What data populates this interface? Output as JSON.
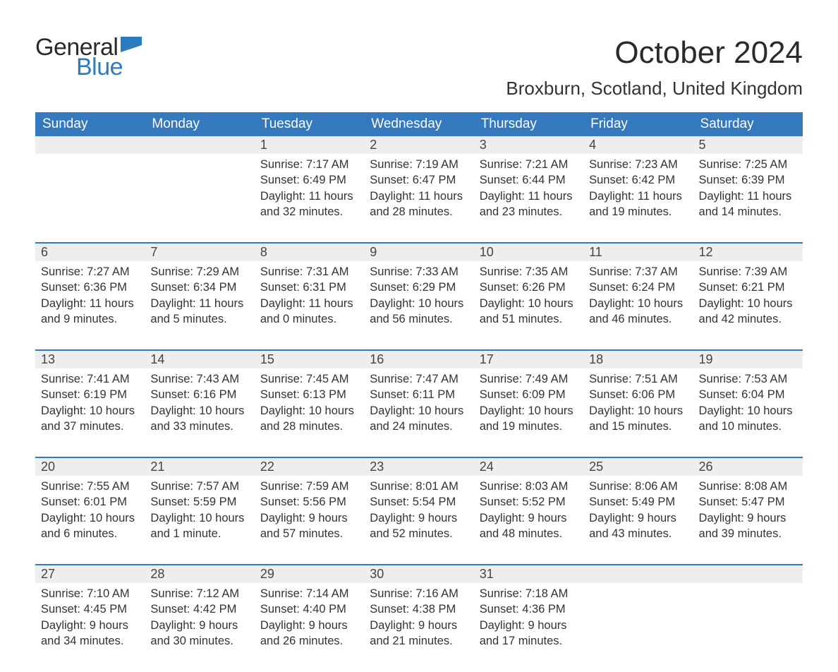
{
  "brand": {
    "word1": "General",
    "word2": "Blue",
    "flag_color": "#2b7bbf"
  },
  "header": {
    "title": "October 2024",
    "location": "Broxburn, Scotland, United Kingdom"
  },
  "colors": {
    "header_bg": "#3478bd",
    "header_text": "#ffffff",
    "daynum_bg": "#eeeeee",
    "row_divider": "#3478bd",
    "body_text": "#333333",
    "brand_dark": "#2a2a2a",
    "brand_blue": "#2b7bbf"
  },
  "typography": {
    "title_fontsize": 44,
    "location_fontsize": 26,
    "dayheader_fontsize": 19,
    "cell_fontsize": 16.5,
    "logo_fontsize": 34
  },
  "day_headers": [
    "Sunday",
    "Monday",
    "Tuesday",
    "Wednesday",
    "Thursday",
    "Friday",
    "Saturday"
  ],
  "weeks": [
    [
      null,
      null,
      {
        "n": "1",
        "sunrise": "Sunrise: 7:17 AM",
        "sunset": "Sunset: 6:49 PM",
        "day1": "Daylight: 11 hours",
        "day2": "and 32 minutes."
      },
      {
        "n": "2",
        "sunrise": "Sunrise: 7:19 AM",
        "sunset": "Sunset: 6:47 PM",
        "day1": "Daylight: 11 hours",
        "day2": "and 28 minutes."
      },
      {
        "n": "3",
        "sunrise": "Sunrise: 7:21 AM",
        "sunset": "Sunset: 6:44 PM",
        "day1": "Daylight: 11 hours",
        "day2": "and 23 minutes."
      },
      {
        "n": "4",
        "sunrise": "Sunrise: 7:23 AM",
        "sunset": "Sunset: 6:42 PM",
        "day1": "Daylight: 11 hours",
        "day2": "and 19 minutes."
      },
      {
        "n": "5",
        "sunrise": "Sunrise: 7:25 AM",
        "sunset": "Sunset: 6:39 PM",
        "day1": "Daylight: 11 hours",
        "day2": "and 14 minutes."
      }
    ],
    [
      {
        "n": "6",
        "sunrise": "Sunrise: 7:27 AM",
        "sunset": "Sunset: 6:36 PM",
        "day1": "Daylight: 11 hours",
        "day2": "and 9 minutes."
      },
      {
        "n": "7",
        "sunrise": "Sunrise: 7:29 AM",
        "sunset": "Sunset: 6:34 PM",
        "day1": "Daylight: 11 hours",
        "day2": "and 5 minutes."
      },
      {
        "n": "8",
        "sunrise": "Sunrise: 7:31 AM",
        "sunset": "Sunset: 6:31 PM",
        "day1": "Daylight: 11 hours",
        "day2": "and 0 minutes."
      },
      {
        "n": "9",
        "sunrise": "Sunrise: 7:33 AM",
        "sunset": "Sunset: 6:29 PM",
        "day1": "Daylight: 10 hours",
        "day2": "and 56 minutes."
      },
      {
        "n": "10",
        "sunrise": "Sunrise: 7:35 AM",
        "sunset": "Sunset: 6:26 PM",
        "day1": "Daylight: 10 hours",
        "day2": "and 51 minutes."
      },
      {
        "n": "11",
        "sunrise": "Sunrise: 7:37 AM",
        "sunset": "Sunset: 6:24 PM",
        "day1": "Daylight: 10 hours",
        "day2": "and 46 minutes."
      },
      {
        "n": "12",
        "sunrise": "Sunrise: 7:39 AM",
        "sunset": "Sunset: 6:21 PM",
        "day1": "Daylight: 10 hours",
        "day2": "and 42 minutes."
      }
    ],
    [
      {
        "n": "13",
        "sunrise": "Sunrise: 7:41 AM",
        "sunset": "Sunset: 6:19 PM",
        "day1": "Daylight: 10 hours",
        "day2": "and 37 minutes."
      },
      {
        "n": "14",
        "sunrise": "Sunrise: 7:43 AM",
        "sunset": "Sunset: 6:16 PM",
        "day1": "Daylight: 10 hours",
        "day2": "and 33 minutes."
      },
      {
        "n": "15",
        "sunrise": "Sunrise: 7:45 AM",
        "sunset": "Sunset: 6:13 PM",
        "day1": "Daylight: 10 hours",
        "day2": "and 28 minutes."
      },
      {
        "n": "16",
        "sunrise": "Sunrise: 7:47 AM",
        "sunset": "Sunset: 6:11 PM",
        "day1": "Daylight: 10 hours",
        "day2": "and 24 minutes."
      },
      {
        "n": "17",
        "sunrise": "Sunrise: 7:49 AM",
        "sunset": "Sunset: 6:09 PM",
        "day1": "Daylight: 10 hours",
        "day2": "and 19 minutes."
      },
      {
        "n": "18",
        "sunrise": "Sunrise: 7:51 AM",
        "sunset": "Sunset: 6:06 PM",
        "day1": "Daylight: 10 hours",
        "day2": "and 15 minutes."
      },
      {
        "n": "19",
        "sunrise": "Sunrise: 7:53 AM",
        "sunset": "Sunset: 6:04 PM",
        "day1": "Daylight: 10 hours",
        "day2": "and 10 minutes."
      }
    ],
    [
      {
        "n": "20",
        "sunrise": "Sunrise: 7:55 AM",
        "sunset": "Sunset: 6:01 PM",
        "day1": "Daylight: 10 hours",
        "day2": "and 6 minutes."
      },
      {
        "n": "21",
        "sunrise": "Sunrise: 7:57 AM",
        "sunset": "Sunset: 5:59 PM",
        "day1": "Daylight: 10 hours",
        "day2": "and 1 minute."
      },
      {
        "n": "22",
        "sunrise": "Sunrise: 7:59 AM",
        "sunset": "Sunset: 5:56 PM",
        "day1": "Daylight: 9 hours",
        "day2": "and 57 minutes."
      },
      {
        "n": "23",
        "sunrise": "Sunrise: 8:01 AM",
        "sunset": "Sunset: 5:54 PM",
        "day1": "Daylight: 9 hours",
        "day2": "and 52 minutes."
      },
      {
        "n": "24",
        "sunrise": "Sunrise: 8:03 AM",
        "sunset": "Sunset: 5:52 PM",
        "day1": "Daylight: 9 hours",
        "day2": "and 48 minutes."
      },
      {
        "n": "25",
        "sunrise": "Sunrise: 8:06 AM",
        "sunset": "Sunset: 5:49 PM",
        "day1": "Daylight: 9 hours",
        "day2": "and 43 minutes."
      },
      {
        "n": "26",
        "sunrise": "Sunrise: 8:08 AM",
        "sunset": "Sunset: 5:47 PM",
        "day1": "Daylight: 9 hours",
        "day2": "and 39 minutes."
      }
    ],
    [
      {
        "n": "27",
        "sunrise": "Sunrise: 7:10 AM",
        "sunset": "Sunset: 4:45 PM",
        "day1": "Daylight: 9 hours",
        "day2": "and 34 minutes."
      },
      {
        "n": "28",
        "sunrise": "Sunrise: 7:12 AM",
        "sunset": "Sunset: 4:42 PM",
        "day1": "Daylight: 9 hours",
        "day2": "and 30 minutes."
      },
      {
        "n": "29",
        "sunrise": "Sunrise: 7:14 AM",
        "sunset": "Sunset: 4:40 PM",
        "day1": "Daylight: 9 hours",
        "day2": "and 26 minutes."
      },
      {
        "n": "30",
        "sunrise": "Sunrise: 7:16 AM",
        "sunset": "Sunset: 4:38 PM",
        "day1": "Daylight: 9 hours",
        "day2": "and 21 minutes."
      },
      {
        "n": "31",
        "sunrise": "Sunrise: 7:18 AM",
        "sunset": "Sunset: 4:36 PM",
        "day1": "Daylight: 9 hours",
        "day2": "and 17 minutes."
      },
      null,
      null
    ]
  ]
}
